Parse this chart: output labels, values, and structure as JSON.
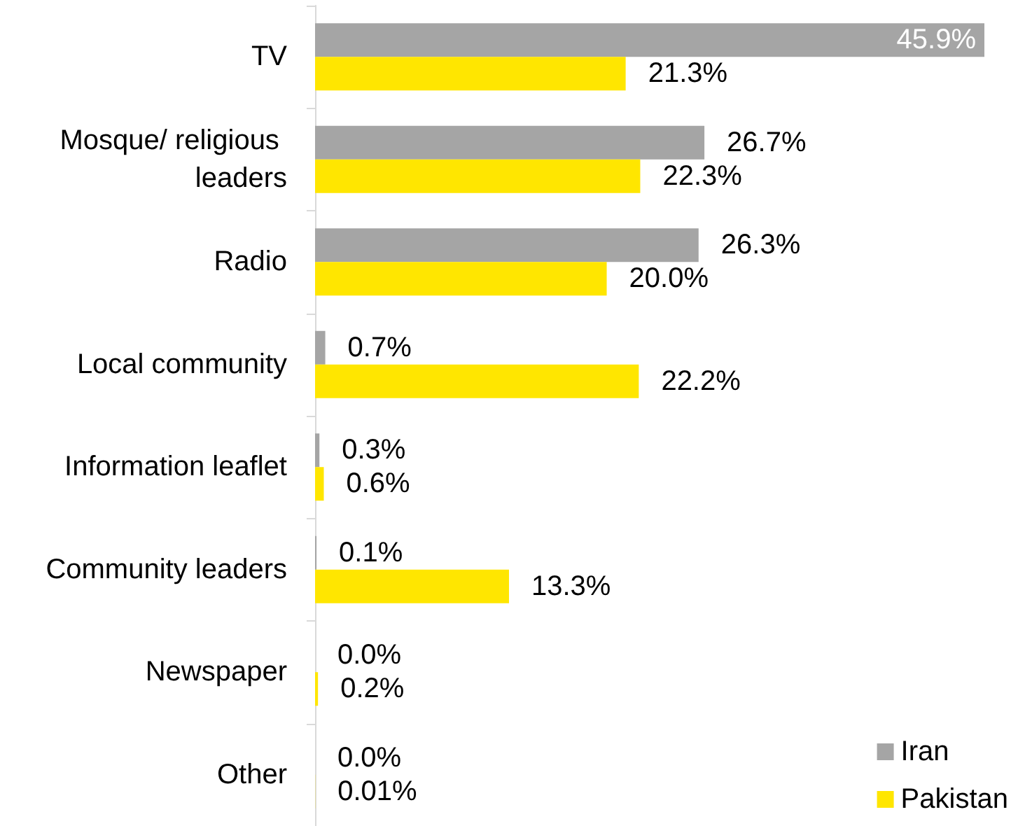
{
  "chart_data": {
    "type": "bar",
    "orientation": "horizontal",
    "categories": [
      "TV",
      "Mosque/ religious leaders",
      "Radio",
      "Local community",
      "Information leaflet",
      "Community leaders",
      "Newspaper",
      "Other"
    ],
    "series": [
      {
        "name": "Iran",
        "color": "#a5a5a5",
        "values": [
          45.9,
          26.7,
          26.3,
          0.7,
          0.3,
          0.1,
          0.0,
          0.0
        ],
        "value_labels": [
          "45.9%",
          "26.7%",
          "26.3%",
          "0.7%",
          "0.3%",
          "0.1%",
          "0.0%",
          "0.0%"
        ]
      },
      {
        "name": "Pakistan",
        "color": "#ffe600",
        "values": [
          21.3,
          22.3,
          20.0,
          22.2,
          0.6,
          13.3,
          0.2,
          0.01
        ],
        "value_labels": [
          "21.3%",
          "22.3%",
          "20.0%",
          "22.2%",
          "0.6%",
          "13.3%",
          "0.2%",
          "0.01%"
        ]
      }
    ],
    "legend": "bottom right"
  }
}
